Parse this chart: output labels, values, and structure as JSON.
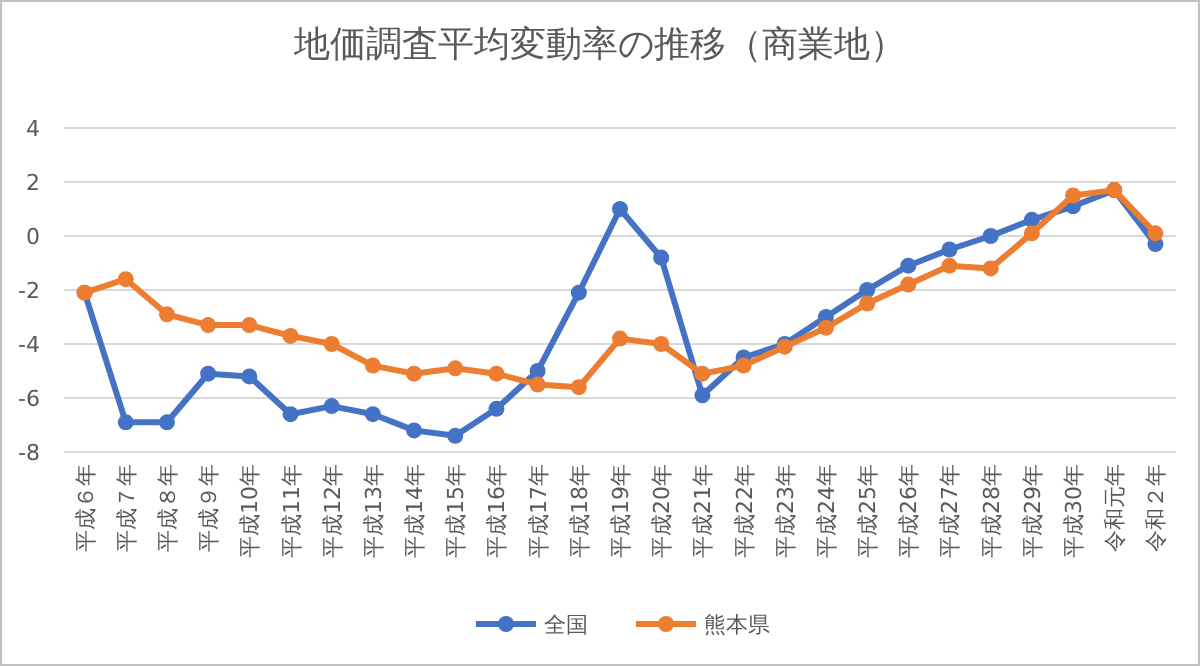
{
  "chart_data": {
    "type": "line",
    "title": "地価調査平均変動率の推移（商業地）",
    "categories": [
      "平成６年",
      "平成７年",
      "平成８年",
      "平成９年",
      "平成10年",
      "平成11年",
      "平成12年",
      "平成13年",
      "平成14年",
      "平成15年",
      "平成16年",
      "平成17年",
      "平成18年",
      "平成19年",
      "平成20年",
      "平成21年",
      "平成22年",
      "平成23年",
      "平成24年",
      "平成25年",
      "平成26年",
      "平成27年",
      "平成28年",
      "平成29年",
      "平成30年",
      "令和元年",
      "令和２年"
    ],
    "series": [
      {
        "name": "全国",
        "color": "#4472c4",
        "values": [
          -2.1,
          -6.9,
          -6.9,
          -5.1,
          -5.2,
          -6.6,
          -6.3,
          -6.6,
          -7.2,
          -7.4,
          -6.4,
          -5.0,
          -2.1,
          1.0,
          -0.8,
          -5.9,
          -4.5,
          -4.0,
          -3.0,
          -2.0,
          -1.1,
          -0.5,
          0.0,
          0.6,
          1.1,
          1.7,
          -0.3
        ]
      },
      {
        "name": "熊本県",
        "color": "#ed7d31",
        "values": [
          -2.1,
          -1.6,
          -2.9,
          -3.3,
          -3.3,
          -3.7,
          -4.0,
          -4.8,
          -5.1,
          -4.9,
          -5.1,
          -5.5,
          -5.6,
          -3.8,
          -4.0,
          -5.1,
          -4.8,
          -4.1,
          -3.4,
          -2.5,
          -1.8,
          -1.1,
          -1.2,
          0.1,
          1.5,
          1.7,
          0.1
        ]
      }
    ],
    "ylim": [
      -8,
      4
    ],
    "yticks": [
      -8,
      -6,
      -4,
      -2,
      0,
      2,
      4
    ],
    "grid": "y",
    "legend": "bottom",
    "marker": "circle",
    "line_style": "solid"
  }
}
